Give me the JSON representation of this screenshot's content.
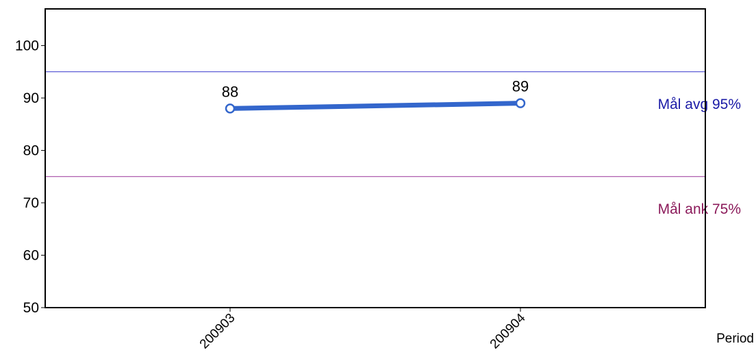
{
  "chart_data": {
    "type": "line",
    "categories": [
      "200903",
      "200904"
    ],
    "series": [
      {
        "values": [
          88,
          89
        ],
        "color": "#3366cc"
      }
    ],
    "data_labels": [
      "88",
      "89"
    ],
    "xlabel": "Period",
    "ylabel": "",
    "ylim": [
      50,
      107
    ],
    "yticks": [
      50,
      60,
      70,
      80,
      90,
      100
    ],
    "ytick_labels": [
      "50",
      "60",
      "70",
      "80",
      "90",
      "100"
    ],
    "grid": false,
    "legend": "none",
    "reference_lines": [
      {
        "label": "Mål avg 95%",
        "value": 95,
        "color": "#3333cc",
        "text_color": "#1a1aa6"
      },
      {
        "label": "Mål ank 75%",
        "value": 75,
        "color": "#993399",
        "text_color": "#8b1a5a"
      }
    ]
  }
}
